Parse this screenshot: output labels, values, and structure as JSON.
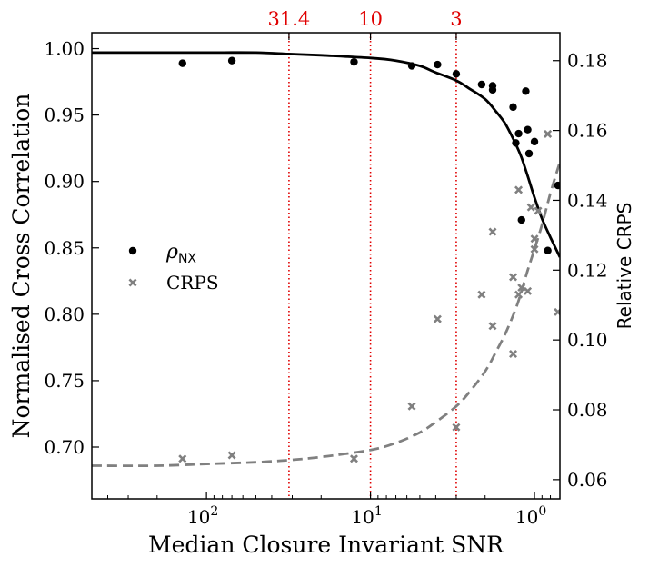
{
  "chart_data": {
    "type": "scatter",
    "x_scale": "log",
    "x_reversed": true,
    "xlim": [
      500,
      0.7
    ],
    "ylim_left": [
      0.661,
      1.012
    ],
    "ylim_right": [
      0.0545,
      0.188
    ],
    "xlabel": "Median Closure Invariant SNR",
    "ylabel_left": "Normalised Cross Correlation",
    "ylabel_right": "Relative CRPS",
    "x_ticks": [
      {
        "value": 100,
        "label": "10",
        "exp": "2"
      },
      {
        "value": 10,
        "label": "10",
        "exp": "1"
      },
      {
        "value": 1,
        "label": "10",
        "exp": "0"
      }
    ],
    "y_ticks_left": [
      "0.70",
      "0.75",
      "0.80",
      "0.85",
      "0.90",
      "0.95",
      "1.00"
    ],
    "y_ticks_right": [
      "0.06",
      "0.08",
      "0.10",
      "0.12",
      "0.14",
      "0.16",
      "0.18"
    ],
    "vlines": [
      {
        "x": 31.4,
        "label": "31.4"
      },
      {
        "x": 10,
        "label": "10"
      },
      {
        "x": 3,
        "label": "3"
      }
    ],
    "legend": {
      "placement": "center-left",
      "items": [
        {
          "label": "ρ",
          "sub": "NX",
          "marker": "dot"
        },
        {
          "label": "CRPS",
          "marker": "x"
        }
      ]
    },
    "series": [
      {
        "name": "ρNX",
        "axis": "left",
        "color": "#000000",
        "marker": "dot",
        "x": [
          140,
          70,
          12.6,
          5.6,
          3.9,
          3.0,
          2.1,
          1.8,
          1.8,
          1.35,
          1.3,
          1.25,
          1.2,
          1.13,
          1.1,
          1.08,
          1.0,
          0.83,
          0.72
        ],
        "y": [
          0.989,
          0.991,
          0.99,
          0.987,
          0.988,
          0.981,
          0.973,
          0.972,
          0.969,
          0.956,
          0.929,
          0.936,
          0.871,
          0.968,
          0.939,
          0.921,
          0.93,
          0.848,
          0.897
        ]
      },
      {
        "name": "CRPS",
        "axis": "right",
        "color": "#808080",
        "marker": "x",
        "x": [
          140,
          70,
          12.6,
          5.6,
          3.9,
          3.0,
          2.1,
          1.8,
          1.8,
          1.35,
          1.35,
          1.25,
          1.25,
          1.2,
          1.1,
          1.05,
          1.0,
          1.0,
          0.95,
          0.83,
          0.72
        ],
        "y": [
          0.066,
          0.067,
          0.066,
          0.081,
          0.106,
          0.075,
          0.113,
          0.131,
          0.104,
          0.118,
          0.096,
          0.143,
          0.113,
          0.115,
          0.114,
          0.138,
          0.126,
          0.129,
          0.137,
          0.159,
          0.108
        ]
      },
      {
        "name": "ρNX fit",
        "axis": "left",
        "color": "#000000",
        "style": "solid",
        "x": [
          500,
          200,
          100,
          50,
          31.4,
          20,
          10,
          7,
          5,
          4,
          3,
          2.5,
          2,
          1.7,
          1.5,
          1.3,
          1.2,
          1.1,
          1.0,
          0.9,
          0.8,
          0.7
        ],
        "y": [
          0.997,
          0.997,
          0.997,
          0.997,
          0.996,
          0.995,
          0.993,
          0.991,
          0.987,
          0.982,
          0.976,
          0.97,
          0.962,
          0.952,
          0.943,
          0.928,
          0.918,
          0.904,
          0.888,
          0.872,
          0.858,
          0.843
        ]
      },
      {
        "name": "CRPS fit",
        "axis": "right",
        "color": "#808080",
        "style": "dashed",
        "x": [
          500,
          200,
          100,
          50,
          31.4,
          20,
          10,
          7,
          5,
          4,
          3,
          2.5,
          2,
          1.7,
          1.5,
          1.3,
          1.2,
          1.1,
          1.0,
          0.9,
          0.8,
          0.7
        ],
        "y": [
          0.064,
          0.064,
          0.0645,
          0.065,
          0.0656,
          0.0665,
          0.0685,
          0.0705,
          0.0735,
          0.0765,
          0.081,
          0.085,
          0.091,
          0.097,
          0.102,
          0.109,
          0.114,
          0.12,
          0.126,
          0.133,
          0.142,
          0.151
        ]
      }
    ]
  }
}
